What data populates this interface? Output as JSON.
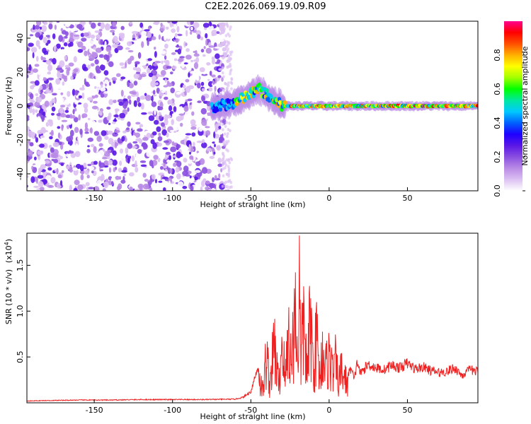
{
  "title": "C2E2.2026.069.19.09.R09",
  "chart_data": [
    {
      "type": "heatmap",
      "xlabel": "Height of straight line (km)",
      "ylabel": "Frequency (Hz)",
      "xlim": [
        -193,
        95
      ],
      "ylim": [
        -50,
        50
      ],
      "xticks": [
        -150,
        -100,
        -50,
        0,
        50
      ],
      "yticks": [
        -40,
        -20,
        0,
        20,
        40
      ],
      "colorbar": {
        "label": "Normalized spectral amplitude",
        "range": [
          0,
          1
        ],
        "ticks": [
          0.0,
          0.2,
          0.4,
          0.6,
          0.8
        ],
        "colors": [
          "#ffffff",
          "#dcc0f2",
          "#b98be6",
          "#8a4fe0",
          "#5a17e6",
          "#1e00ff",
          "#0060ff",
          "#00c8ff",
          "#00e8a0",
          "#00ff00",
          "#a0ff00",
          "#ffff00",
          "#ffb000",
          "#ff5000",
          "#ff0000",
          "#ff0090"
        ]
      },
      "regions": {
        "noise_x_range": [
          -193,
          -66
        ],
        "signal_ridge_x_range": [
          -75,
          95
        ],
        "signal_center_freq": 0,
        "signal_peak_freq_at_x": [
          [
            -75,
            -1
          ],
          [
            -60,
            2
          ],
          [
            -50,
            7
          ],
          [
            -45,
            10
          ],
          [
            -38,
            5
          ],
          [
            -30,
            0
          ],
          [
            0,
            0
          ],
          [
            95,
            0
          ]
        ]
      }
    },
    {
      "type": "line",
      "xlabel": "Height of straight line (km)",
      "ylabel": "SNR (10 * v/v)",
      "y_multiplier": "(x10",
      "y_multiplier_exp": "4",
      "xlim": [
        -193,
        95
      ],
      "ylim": [
        0,
        18500
      ],
      "xticks": [
        -150,
        -100,
        -50,
        0,
        50
      ],
      "yticks": [
        5000,
        10000,
        15000
      ],
      "ytick_labels": [
        "0.5",
        "1.0",
        "1.5"
      ],
      "color": "#ee2020",
      "series": [
        {
          "x": [
            -193,
            -180,
            -160,
            -140,
            -120,
            -100,
            -80,
            -60,
            -55,
            -50,
            -48,
            -45,
            -42,
            -40,
            -38,
            -35,
            -32,
            -30,
            -28,
            -26,
            -24,
            -22,
            -20,
            -19,
            -18,
            -16,
            -14,
            -12,
            -10,
            -8,
            -6,
            -4,
            -2,
            0,
            2,
            4,
            6,
            8,
            10,
            12,
            14,
            16,
            18,
            20,
            25,
            30,
            35,
            40,
            45,
            50,
            55,
            60,
            65,
            70,
            75,
            80,
            85,
            90,
            95
          ],
          "values": [
            200,
            250,
            300,
            300,
            350,
            350,
            350,
            400,
            600,
            1200,
            2500,
            4000,
            2000,
            8500,
            3000,
            9500,
            2500,
            11000,
            3500,
            12000,
            6000,
            16000,
            8000,
            18500,
            7000,
            14000,
            4000,
            14500,
            5000,
            11000,
            4500,
            9000,
            6000,
            8000,
            5000,
            6500,
            3500,
            5500,
            4000,
            3000,
            3800,
            2500,
            4500,
            3200,
            4200,
            3800,
            3600,
            4100,
            3800,
            4300,
            3700,
            3900,
            3500,
            3300,
            3400,
            3800,
            3000,
            3600,
            3400
          ]
        }
      ]
    }
  ]
}
